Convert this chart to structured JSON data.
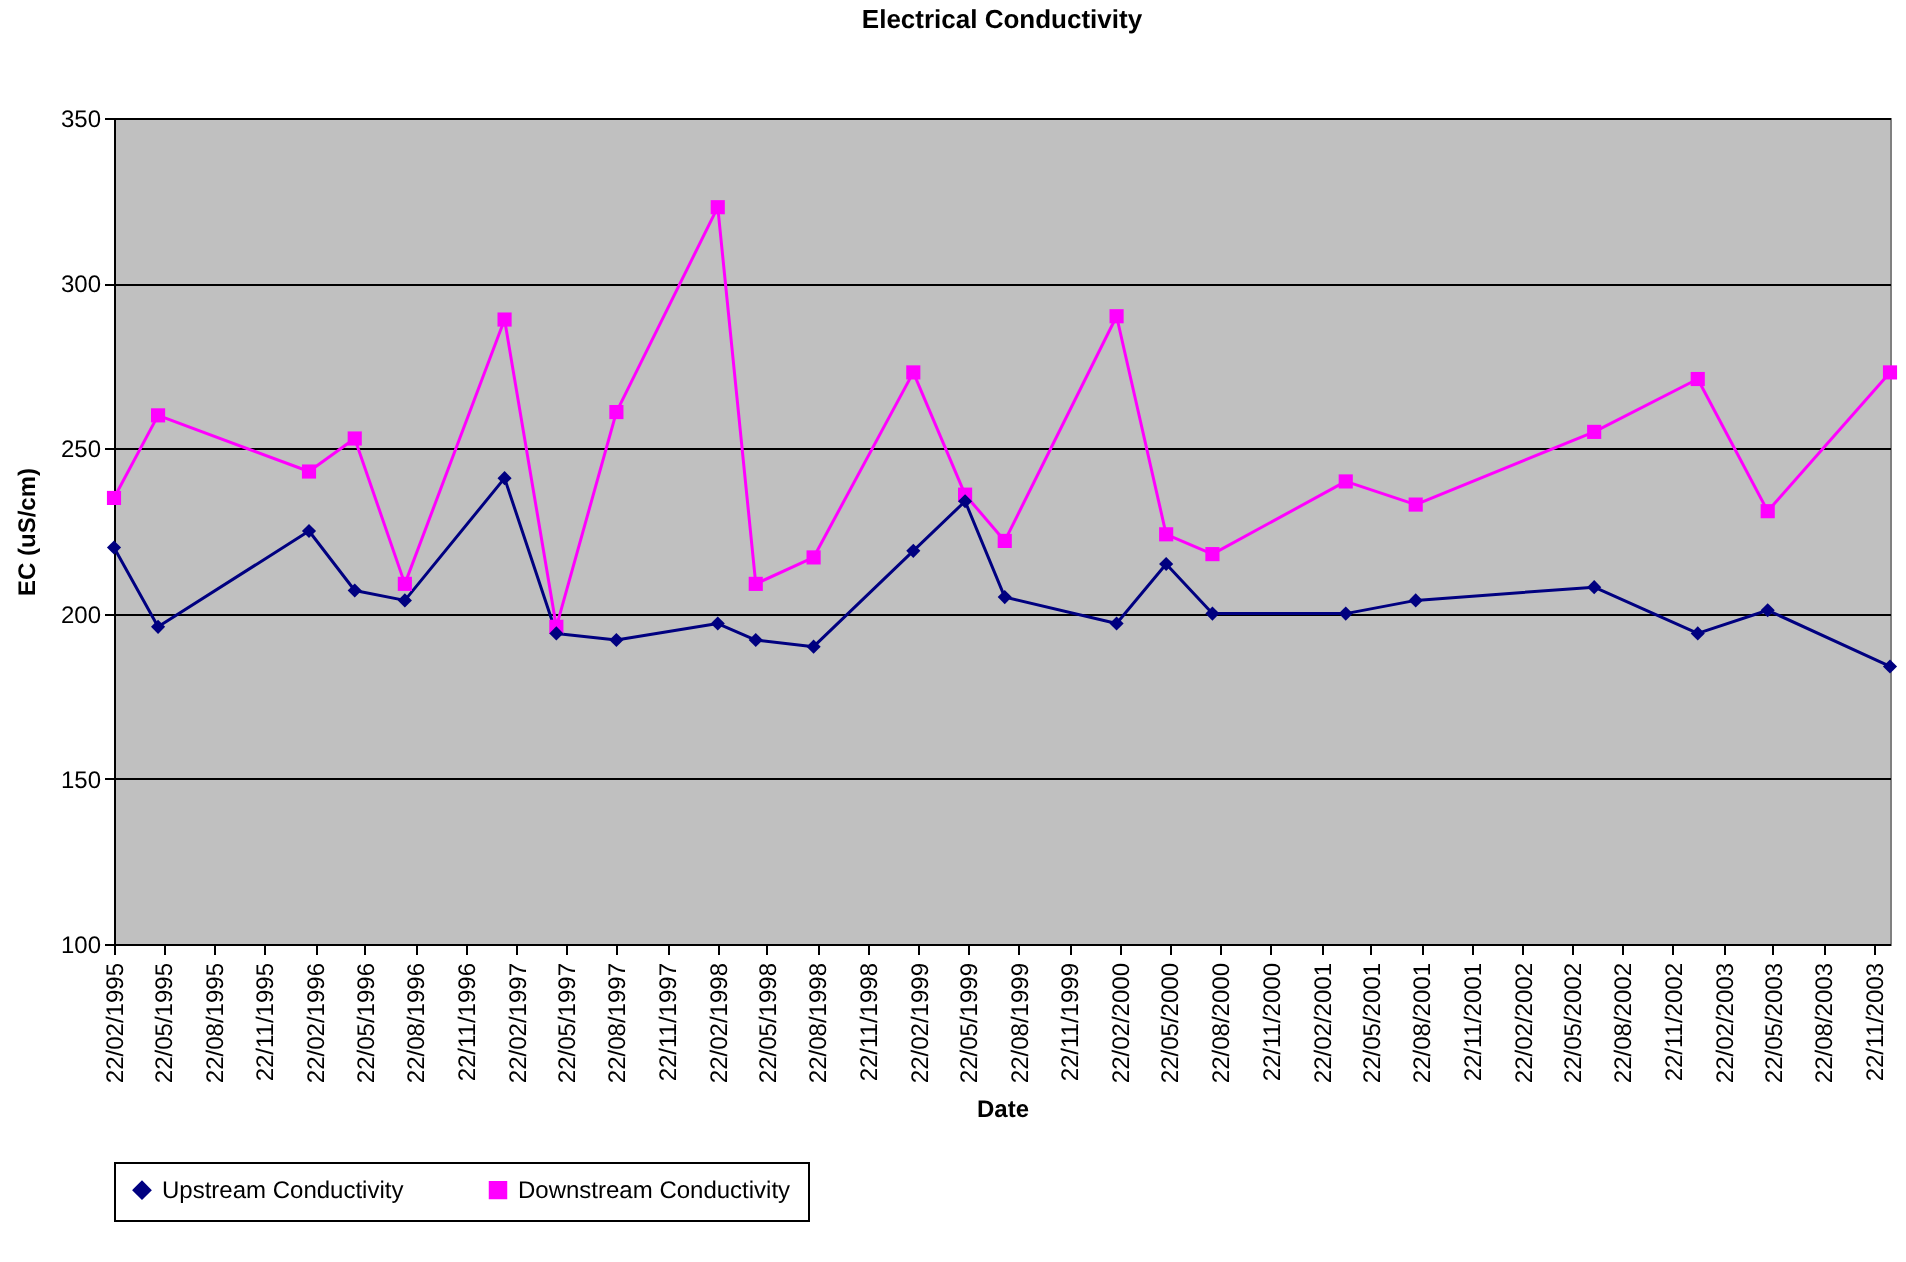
{
  "chart_data": {
    "type": "line",
    "title": "Electrical Conductivity",
    "xlabel": "Date",
    "ylabel": "EC (uS/cm)",
    "x": [
      "1995-02-22",
      "1995-05-13",
      "1996-02-11",
      "1996-05-04",
      "1996-08-03",
      "1997-01-31",
      "1997-05-05",
      "1997-08-22",
      "1998-02-22",
      "1998-05-02",
      "1998-08-15",
      "1999-02-12",
      "1999-05-17",
      "1999-07-28",
      "2000-02-16",
      "2000-05-16",
      "2000-08-08",
      "2001-04-07",
      "2001-08-12",
      "2002-07-02",
      "2003-01-06",
      "2003-05-13",
      "2003-12-21"
    ],
    "series": [
      {
        "name": "Upstream Conductivity",
        "color": "#000080",
        "marker": "diamond",
        "values": [
          220,
          196,
          225,
          207,
          204,
          241,
          194,
          192,
          197,
          192,
          190,
          219,
          234,
          205,
          197,
          215,
          200,
          200,
          204,
          208,
          194,
          201,
          184
        ]
      },
      {
        "name": "Downstream Conductivity",
        "color": "#ff00ff",
        "marker": "square",
        "values": [
          235,
          260,
          243,
          253,
          209,
          289,
          196,
          261,
          323,
          209,
          217,
          273,
          236,
          222,
          290,
          224,
          218,
          240,
          233,
          255,
          271,
          231,
          273
        ]
      }
    ],
    "xlim": [
      "1995-02-22",
      "2003-12-21"
    ],
    "xticks": [
      {
        "value": "1995-02-22",
        "label": "22/02/1995"
      },
      {
        "value": "1995-05-22",
        "label": "22/05/1995"
      },
      {
        "value": "1995-08-22",
        "label": "22/08/1995"
      },
      {
        "value": "1995-11-22",
        "label": "22/11/1995"
      },
      {
        "value": "1996-02-22",
        "label": "22/02/1996"
      },
      {
        "value": "1996-05-22",
        "label": "22/05/1996"
      },
      {
        "value": "1996-08-22",
        "label": "22/08/1996"
      },
      {
        "value": "1996-11-22",
        "label": "22/11/1996"
      },
      {
        "value": "1997-02-22",
        "label": "22/02/1997"
      },
      {
        "value": "1997-05-22",
        "label": "22/05/1997"
      },
      {
        "value": "1997-08-22",
        "label": "22/08/1997"
      },
      {
        "value": "1997-11-22",
        "label": "22/11/1997"
      },
      {
        "value": "1998-02-22",
        "label": "22/02/1998"
      },
      {
        "value": "1998-05-22",
        "label": "22/05/1998"
      },
      {
        "value": "1998-08-22",
        "label": "22/08/1998"
      },
      {
        "value": "1998-11-22",
        "label": "22/11/1998"
      },
      {
        "value": "1999-02-22",
        "label": "22/02/1999"
      },
      {
        "value": "1999-05-22",
        "label": "22/05/1999"
      },
      {
        "value": "1999-08-22",
        "label": "22/08/1999"
      },
      {
        "value": "1999-11-22",
        "label": "22/11/1999"
      },
      {
        "value": "2000-02-22",
        "label": "22/02/2000"
      },
      {
        "value": "2000-05-22",
        "label": "22/05/2000"
      },
      {
        "value": "2000-08-22",
        "label": "22/08/2000"
      },
      {
        "value": "2000-11-22",
        "label": "22/11/2000"
      },
      {
        "value": "2001-02-22",
        "label": "22/02/2001"
      },
      {
        "value": "2001-05-22",
        "label": "22/05/2001"
      },
      {
        "value": "2001-08-22",
        "label": "22/08/2001"
      },
      {
        "value": "2001-11-22",
        "label": "22/11/2001"
      },
      {
        "value": "2002-02-22",
        "label": "22/02/2002"
      },
      {
        "value": "2002-05-22",
        "label": "22/05/2002"
      },
      {
        "value": "2002-08-22",
        "label": "22/08/2002"
      },
      {
        "value": "2002-11-22",
        "label": "22/11/2002"
      },
      {
        "value": "2003-02-22",
        "label": "22/02/2003"
      },
      {
        "value": "2003-05-22",
        "label": "22/05/2003"
      },
      {
        "value": "2003-08-22",
        "label": "22/08/2003"
      },
      {
        "value": "2003-11-22",
        "label": "22/11/2003"
      }
    ],
    "ylim": [
      100,
      350
    ],
    "yticks": [
      100,
      150,
      200,
      250,
      300,
      350
    ],
    "grid": "y",
    "legend": "bottom",
    "line_style": "solid"
  }
}
